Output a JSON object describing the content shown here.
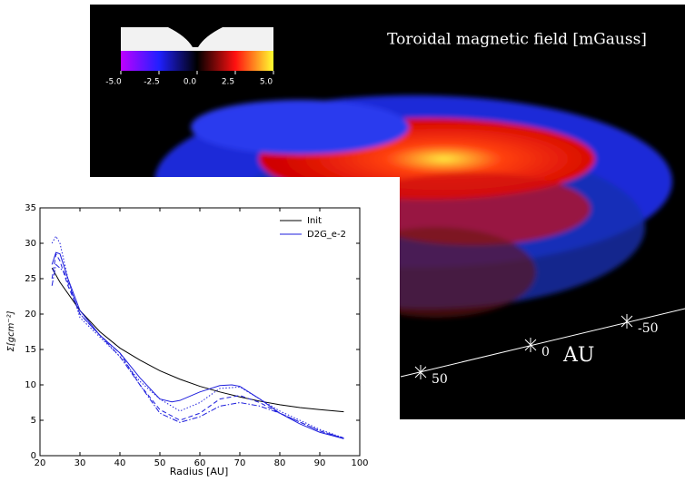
{
  "render": {
    "title": "Toroidal magnetic field [mGauss]",
    "colorbar": {
      "lim": [
        -5,
        5
      ],
      "ticks": [
        {
          "value": -5,
          "label": "-5.0"
        },
        {
          "value": -2.5,
          "label": "-2.5"
        },
        {
          "value": 0,
          "label": "0.0"
        },
        {
          "value": 2.5,
          "label": "2.5"
        },
        {
          "value": 5,
          "label": "5.0"
        }
      ]
    },
    "axis": {
      "ticks": [
        50,
        0,
        -50
      ],
      "unit": "AU"
    }
  },
  "chart_data": {
    "type": "line",
    "xlabel": "Radius [AU]",
    "ylabel": "Σ[gcm⁻²]",
    "xlim": [
      20,
      100
    ],
    "xticks": [
      20,
      30,
      40,
      50,
      60,
      70,
      80,
      90,
      100
    ],
    "ylim": [
      0,
      35
    ],
    "yticks": [
      0,
      5,
      10,
      15,
      20,
      25,
      30,
      35
    ],
    "legend": "upper right",
    "series": [
      {
        "name": "Init",
        "color": "#000000",
        "style": "solid",
        "x": [
          23,
          25,
          30,
          35,
          40,
          45,
          50,
          55,
          60,
          65,
          70,
          75,
          80,
          85,
          90,
          96
        ],
        "values": [
          26.5,
          24.5,
          20.5,
          17.5,
          15.2,
          13.5,
          12,
          10.8,
          9.8,
          9,
          8.3,
          7.7,
          7.2,
          6.8,
          6.5,
          6.2
        ]
      },
      {
        "name": "D2G_e-2",
        "color": "#1f1fdd",
        "style": "solid",
        "x": [
          23,
          24,
          25,
          27,
          30,
          35,
          40,
          45,
          50,
          53,
          55,
          60,
          65,
          68,
          70,
          75,
          80,
          85,
          90,
          96
        ],
        "values": [
          27,
          28.7,
          28.5,
          25,
          20.5,
          17,
          14.5,
          11,
          8,
          7.6,
          7.8,
          9,
          9.9,
          10,
          9.8,
          8,
          6,
          4.5,
          3.3,
          2.4
        ]
      },
      {
        "color": "#1f1fdd",
        "style": "dashed",
        "x": [
          23,
          24,
          25,
          27,
          30,
          35,
          40,
          45,
          50,
          55,
          60,
          65,
          70,
          75,
          80,
          90,
          96
        ],
        "values": [
          25,
          28.5,
          27.5,
          24,
          20,
          17,
          14.5,
          10,
          6.5,
          5,
          6,
          8,
          8.5,
          7.5,
          6,
          3.5,
          2.4
        ]
      },
      {
        "color": "#1f1fdd",
        "style": "dotted",
        "x": [
          23,
          24,
          25,
          27,
          30,
          40,
          45,
          50,
          55,
          60,
          65,
          70,
          75,
          80,
          90,
          96
        ],
        "values": [
          30,
          31,
          30,
          25,
          19.5,
          14,
          10.5,
          8,
          6.3,
          7.5,
          9.5,
          9.7,
          8,
          6.3,
          3.7,
          2.5
        ]
      },
      {
        "color": "#1f1fdd",
        "style": "dashdot",
        "x": [
          23,
          24,
          26,
          30,
          40,
          50,
          55,
          60,
          65,
          70,
          75,
          80,
          90,
          96
        ],
        "values": [
          24,
          27,
          26,
          20,
          14,
          6,
          4.7,
          5.5,
          7,
          7.5,
          7,
          6,
          3.5,
          2.5
        ]
      }
    ]
  }
}
